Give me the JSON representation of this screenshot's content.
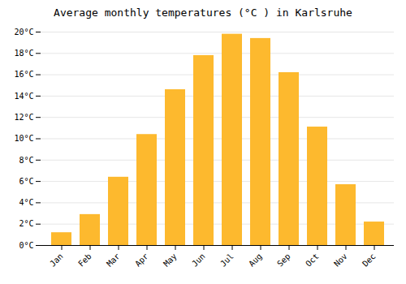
{
  "chart_data": {
    "type": "bar",
    "title": "Average monthly temperatures (°C ) in Karlsruhe",
    "categories": [
      "Jan",
      "Feb",
      "Mar",
      "Apr",
      "May",
      "Jun",
      "Jul",
      "Aug",
      "Sep",
      "Oct",
      "Nov",
      "Dec"
    ],
    "values": [
      1.2,
      2.9,
      6.4,
      10.4,
      14.6,
      17.8,
      19.8,
      19.4,
      16.2,
      11.1,
      5.7,
      2.2
    ],
    "color": "#FDB92E",
    "ylim": [
      0,
      20
    ],
    "yticks": [
      {
        "value": 0,
        "label": "0°C"
      },
      {
        "value": 2,
        "label": "2°C"
      },
      {
        "value": 4,
        "label": "4°C"
      },
      {
        "value": 6,
        "label": "6°C"
      },
      {
        "value": 8,
        "label": "8°C"
      },
      {
        "value": 10,
        "label": "10°C"
      },
      {
        "value": 12,
        "label": "12°C"
      },
      {
        "value": 14,
        "label": "14°C"
      },
      {
        "value": 16,
        "label": "16°C"
      },
      {
        "value": 18,
        "label": "18°C"
      },
      {
        "value": 20,
        "label": "20°C"
      }
    ],
    "grid": true
  }
}
